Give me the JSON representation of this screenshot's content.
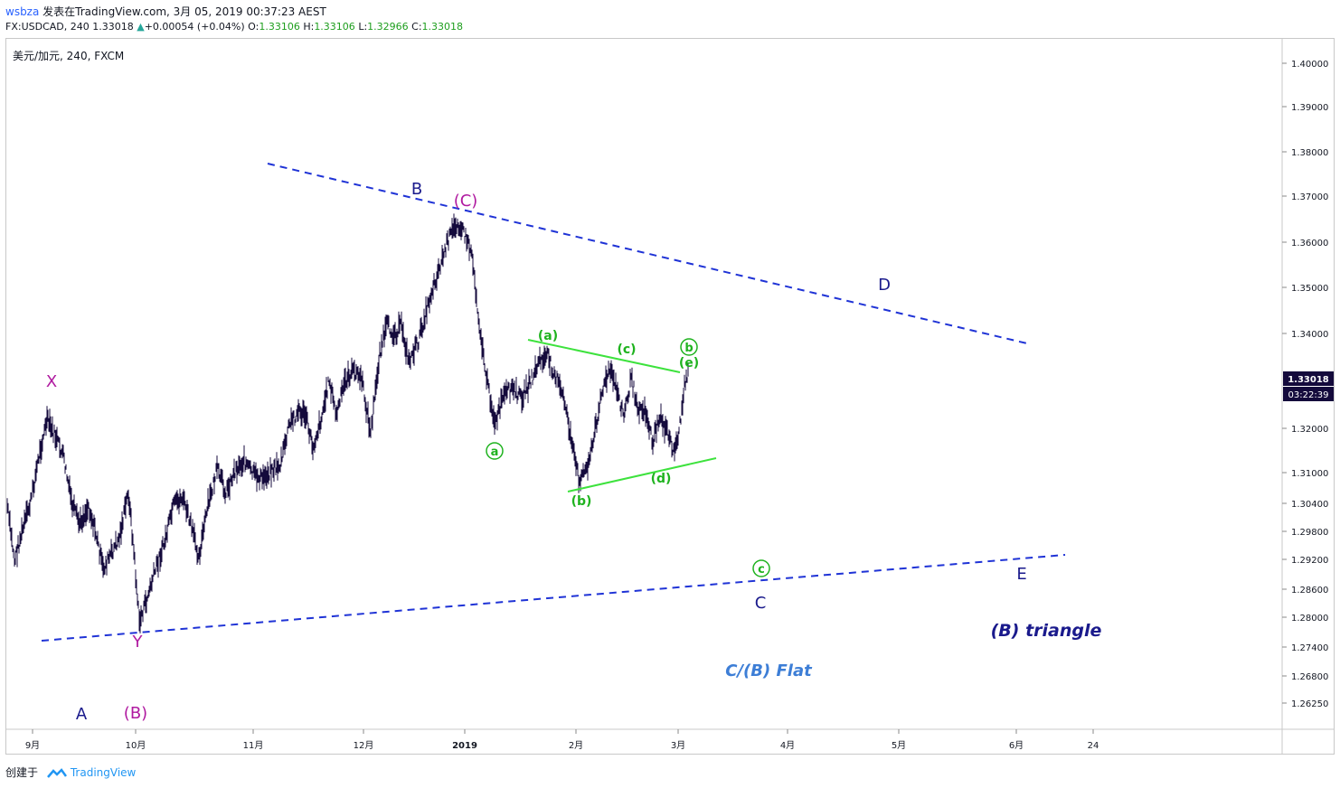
{
  "header": {
    "user": "wsbza",
    "published": "发表在TradingView.com, 3月 05, 2019 00:37:23 AEST",
    "symbol_line": "FX:USDCAD, 240 1.33018",
    "change_icon": "triangle-up-icon",
    "change": "+0.00054 (+0.04%)",
    "o_label": "O:",
    "o_val": "1.33106",
    "h_label": "H:",
    "h_val": "1.33106",
    "l_label": "L:",
    "l_val": "1.32966",
    "c_label": "C:",
    "c_val": "1.33018"
  },
  "legend": {
    "symbol": "美元/加元, 240, FXCM"
  },
  "price_axis": {
    "ticks": [
      "1.40000",
      "1.39000",
      "1.38000",
      "1.37000",
      "1.36000",
      "1.35000",
      "1.34000",
      "1.32000",
      "1.31000",
      "1.30400",
      "1.29800",
      "1.29200",
      "1.28600",
      "1.28000",
      "1.27400",
      "1.26800",
      "1.26250"
    ],
    "last_price": "1.33018",
    "countdown": "03:22:39"
  },
  "time_axis": {
    "ticks": [
      "9月",
      "10月",
      "11月",
      "12月",
      "2019",
      "2月",
      "3月",
      "4月",
      "5月",
      "6月",
      "24"
    ]
  },
  "annotations": {
    "major": {
      "X": "X",
      "Y": "Y",
      "A": "A",
      "B": "B",
      "C": "C",
      "D": "D",
      "E": "E",
      "paren_C": "(C)",
      "paren_B": "(B)"
    },
    "minor": {
      "a": "(a)",
      "b": "(b)",
      "c": "(c)",
      "d": "(d)",
      "e": "(e)",
      "circ_a": "a",
      "circ_b": "b",
      "circ_c": "c"
    },
    "titles": {
      "triangle": "(B) triangle",
      "flat": "C/(B) Flat"
    }
  },
  "colors": {
    "candles": "#140a3c",
    "dashed_lines": "#1f33d6",
    "green": "#1fb31f",
    "bright_green": "#3de23d",
    "magenta": "#b01aa0",
    "navy": "#1a1a8c",
    "flat_blue": "#3d7ed6"
  },
  "footer": {
    "created": "创建于",
    "brand": "TradingView",
    "brand_icon": "tradingview-logo-icon"
  }
}
